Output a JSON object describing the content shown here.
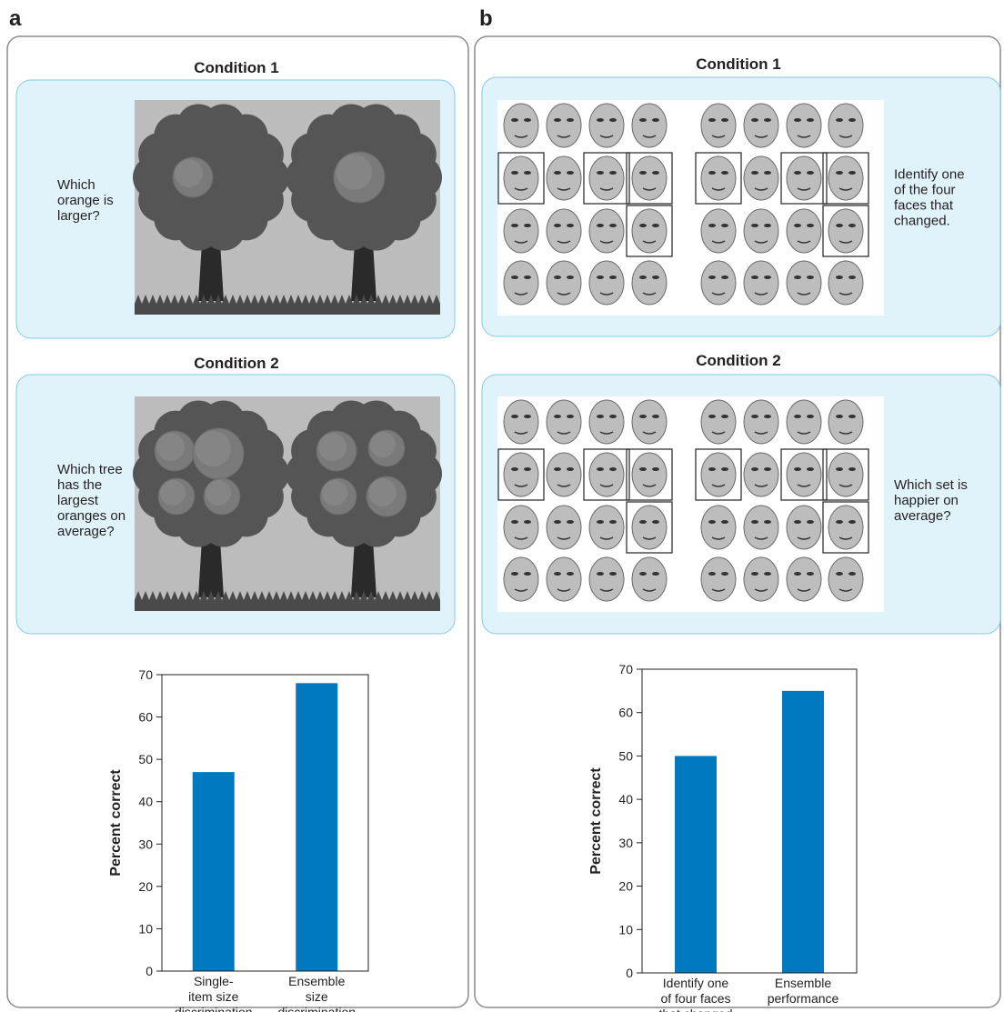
{
  "panels": [
    {
      "label": "a",
      "conditions": [
        {
          "title": "Condition 1",
          "question": "Which\norange is\nlarger?"
        },
        {
          "title": "Condition 2",
          "question": "Which tree\nhas the\nlargest\noranges on\naverage?"
        }
      ]
    },
    {
      "label": "b",
      "conditions": [
        {
          "title": "Condition 1",
          "question": "Identify one\nof the four\nfaces that\nchanged."
        },
        {
          "title": "Condition 2",
          "question": "Which set is\nhappier on\naverage?"
        }
      ]
    }
  ],
  "chart_data": [
    {
      "type": "bar",
      "ylabel": "Percent correct",
      "color": "#0079c1",
      "categories": [
        "Single-\nitem size\ndiscrimination",
        "Ensemble\nsize\ndiscrimination"
      ],
      "values": [
        47,
        68
      ],
      "ylim": [
        0,
        70
      ],
      "yticks": [
        0,
        10,
        20,
        30,
        40,
        50,
        60,
        70
      ]
    },
    {
      "type": "bar",
      "ylabel": "Percent correct",
      "color": "#0079c1",
      "categories": [
        "Identify one\nof four faces\nthat changed",
        "Ensemble\nperformance"
      ],
      "values": [
        50,
        65
      ],
      "ylim": [
        0,
        70
      ],
      "yticks": [
        0,
        10,
        20,
        30,
        40,
        50,
        60,
        70
      ]
    }
  ]
}
